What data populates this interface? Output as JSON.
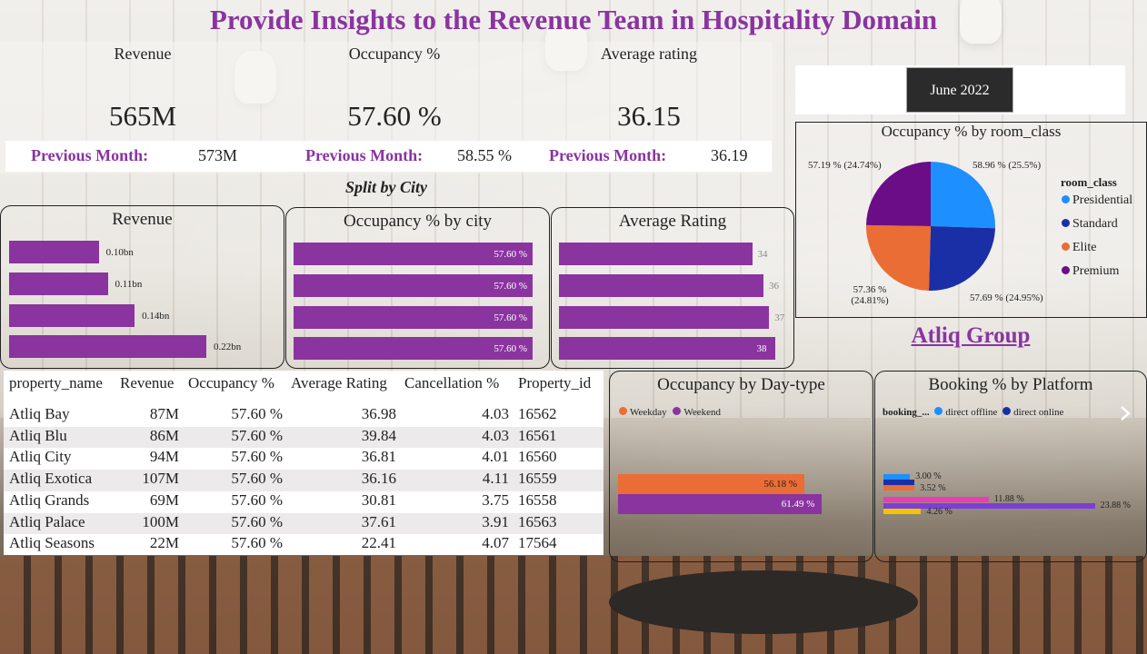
{
  "title": "Provide Insights to the Revenue Team in Hospitality Domain",
  "kpis": [
    {
      "label": "Revenue",
      "value": "565M",
      "prev_label": "Previous Month:",
      "prev_value": "573M"
    },
    {
      "label": "Occupancy %",
      "value": "57.60 %",
      "prev_label": "Previous Month:",
      "prev_value": "58.55 %"
    },
    {
      "label": "Average rating",
      "value": "36.15",
      "prev_label": "Previous Month:",
      "prev_value": "36.19"
    }
  ],
  "split_title": "Split by City",
  "date_selector": {
    "selected": "June 2022"
  },
  "brand": "Atliq Group",
  "colors": {
    "purple": "#8a34a0",
    "presidential": "#1e8fff",
    "standard": "#1a2fa6",
    "elite": "#ea6d35",
    "premium": "#6b0d86",
    "pink": "#e83eb5",
    "yellow": "#f2c400",
    "violet": "#7c3fd6"
  },
  "chart_data": [
    {
      "type": "bar",
      "orientation": "horizontal",
      "title": "Revenue",
      "values": [
        0.1,
        0.11,
        0.14,
        0.22
      ],
      "data_labels": [
        "0.10bn",
        "0.11bn",
        "0.14bn",
        "0.22bn"
      ],
      "xlim": [
        0,
        0.22
      ]
    },
    {
      "type": "bar",
      "orientation": "horizontal",
      "title": "Occupancy % by city",
      "values": [
        57.6,
        57.6,
        57.6,
        57.6
      ],
      "data_labels": [
        "57.60 %",
        "57.60 %",
        "57.60 %",
        "57.60 %"
      ],
      "xlim": [
        0,
        57.6
      ]
    },
    {
      "type": "bar",
      "orientation": "horizontal",
      "title": "Average Rating",
      "values": [
        34,
        36,
        37,
        38
      ],
      "data_labels": [
        "34",
        "36",
        "37",
        "38"
      ],
      "xlim": [
        0,
        40
      ]
    },
    {
      "type": "pie",
      "title": "Occupancy % by room_class",
      "legend_title": "room_class",
      "legend_position": "right",
      "slices": [
        {
          "name": "Presidential",
          "value": 25.5,
          "label": "58.96 % (25.5%)",
          "color": "#1e8fff"
        },
        {
          "name": "Standard",
          "value": 24.95,
          "label": "57.69 % (24.95%)",
          "color": "#1a2fa6"
        },
        {
          "name": "Elite",
          "value": 24.81,
          "label": "57.36 % (24.81%)",
          "color": "#ea6d35"
        },
        {
          "name": "Premium",
          "value": 24.74,
          "label": "57.19 % (24.74%)",
          "color": "#6b0d86"
        }
      ]
    },
    {
      "type": "bar",
      "orientation": "horizontal",
      "title": "Occupancy by Day-type",
      "legend_position": "top-left",
      "series": [
        {
          "name": "Weekday",
          "value": 56.18,
          "label": "56.18 %",
          "color": "#ea6d35"
        },
        {
          "name": "Weekend",
          "value": 61.49,
          "label": "61.49 %",
          "color": "#8a34a0"
        }
      ],
      "xlim": [
        0,
        100
      ]
    },
    {
      "type": "bar",
      "orientation": "horizontal",
      "title": "Booking % by Platform",
      "legend_title": "booking_...",
      "legend_position": "top-left",
      "legend": [
        {
          "name": "direct offline",
          "color": "#1e8fff"
        },
        {
          "name": "direct online",
          "color": "#1a2fa6"
        }
      ],
      "bars": [
        {
          "value": 3.0,
          "label": "3.00 %",
          "color": "#1e8fff"
        },
        {
          "value": 3.52,
          "label": "3.52 %",
          "color": "#1a2fa6"
        },
        {
          "value": 3.52,
          "label": "",
          "color": "#ea6d35"
        },
        {
          "value": 11.88,
          "label": "11.88 %",
          "color": "#e83eb5"
        },
        {
          "value": 23.88,
          "label": "23.88 %",
          "color": "#7c3fd6"
        },
        {
          "value": 4.26,
          "label": "4.26 %",
          "color": "#f2c400"
        }
      ],
      "xlim": [
        0,
        27
      ]
    },
    {
      "type": "table",
      "columns": [
        "property_name",
        "Revenue",
        "Occupancy %",
        "Average Rating",
        "Cancellation %",
        "Property_id"
      ],
      "rows": [
        [
          "Atliq Bay",
          "87M",
          "57.60 %",
          "36.98",
          "4.03",
          "16562"
        ],
        [
          "Atliq Blu",
          "86M",
          "57.60 %",
          "39.84",
          "4.03",
          "16561"
        ],
        [
          "Atliq City",
          "94M",
          "57.60 %",
          "36.81",
          "4.01",
          "16560"
        ],
        [
          "Atliq Exotica",
          "107M",
          "57.60 %",
          "36.16",
          "4.11",
          "16559"
        ],
        [
          "Atliq Grands",
          "69M",
          "57.60 %",
          "30.81",
          "3.75",
          "16558"
        ],
        [
          "Atliq Palace",
          "100M",
          "57.60 %",
          "37.61",
          "3.91",
          "16563"
        ],
        [
          "Atliq Seasons",
          "22M",
          "57.60 %",
          "22.41",
          "4.07",
          "17564"
        ]
      ]
    }
  ]
}
